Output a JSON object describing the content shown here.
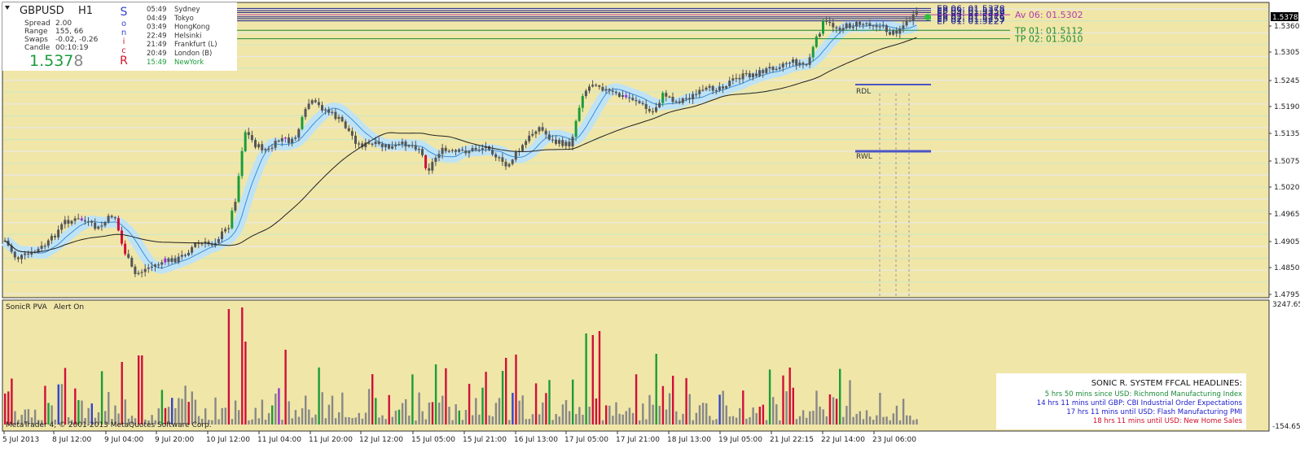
{
  "symbol_panel": {
    "symbol": "GBPUSD",
    "timeframe": "H1",
    "spread_label": "Spread",
    "spread_value": "2.00",
    "range_label": "Range",
    "range_value": "155, 66",
    "swaps_label": "Swaps",
    "swaps_value": "-0.02, -0.26",
    "candle_label": "Candle",
    "candle_value": "00:10:19",
    "bid_main": "1.537",
    "bid_last": "8",
    "logo_letters": [
      "S",
      "o",
      "n",
      "i",
      "c",
      "R"
    ]
  },
  "sessions": [
    {
      "time": "05:49",
      "name": "Sydney"
    },
    {
      "time": "04:49",
      "name": "Tokyo"
    },
    {
      "time": "03:49",
      "name": "HongKong"
    },
    {
      "time": "22:49",
      "name": "Helsinki"
    },
    {
      "time": "21:49",
      "name": "Frankfurt  (L)"
    },
    {
      "time": "20:49",
      "name": "London  (B)"
    },
    {
      "time": "15:49",
      "name": "NewYork"
    }
  ],
  "price_scale": [
    "1.5360",
    "1.5305",
    "1.5245",
    "1.5190",
    "1.5135",
    "1.5075",
    "1.5020",
    "1.4965",
    "1.4905",
    "1.4850",
    "1.4795"
  ],
  "current_price_tag": "1.5378",
  "levels": [
    {
      "label": "EP 06:",
      "value": "01.5378",
      "color": "#1a1a8c"
    },
    {
      "label": "EP 05:",
      "value": "01.5352",
      "color": "#1a1a8c"
    },
    {
      "label": "EP 04:",
      "value": "01.5329",
      "color": "#1a1a8c"
    },
    {
      "label": "Av 06:",
      "value": "01.5302",
      "color": "#b03cb0"
    },
    {
      "label": "EP 03:",
      "value": "01.5276",
      "color": "#1a1a8c"
    },
    {
      "label": "EP 02:",
      "value": "01.5253",
      "color": "#1a1a8c"
    },
    {
      "label": "EP 01:",
      "value": "01.5227",
      "color": "#1a1a8c"
    },
    {
      "label": "TP 01:",
      "value": "01.5112",
      "color": "#1b8c3a"
    },
    {
      "label": "TP 02:",
      "value": "01.5010",
      "color": "#1b8c3a"
    }
  ],
  "rdl_label": "RDL",
  "rwl_label": "RWL",
  "indicator": {
    "name": "SonicR PVA",
    "alert": "Alert On",
    "scale_top": "3247.65",
    "scale_bottom": "-154.65"
  },
  "time_axis": [
    "5 Jul 2013",
    "8 Jul 12:00",
    "9 Jul 04:00",
    "9 Jul 20:00",
    "10 Jul 12:00",
    "11 Jul 04:00",
    "11 Jul 20:00",
    "12 Jul 12:00",
    "15 Jul 05:00",
    "15 Jul 21:00",
    "16 Jul 13:00",
    "17 Jul 05:00",
    "17 Jul 21:00",
    "18 Jul 13:00",
    "19 Jul 05:00",
    "21 Jul 22:15",
    "22 Jul 14:00",
    "23 Jul 06:00"
  ],
  "copyright": "MetaTrader 4, © 2001-2013 MetaQuotes Software Corp.",
  "headlines": {
    "title": "SONIC R. SYSTEM  FFCAL HEADLINES:",
    "items": [
      {
        "text": "5 hrs 50 mins since USD: Richmond Manufacturing Index",
        "color": "#1b8c3a"
      },
      {
        "text": "14 hrs 11 mins until GBP: CBI Industrial Order Expectations",
        "color": "#1a1acc"
      },
      {
        "text": "17 hrs 11 mins until USD: Flash Manufacturing PMI",
        "color": "#1a1acc"
      },
      {
        "text": "18 hrs 11 mins until USD: New Home Sales",
        "color": "#d0102a"
      }
    ]
  },
  "colors": {
    "chart_bg": "#f0e6a8",
    "bull": "#1b9c3a",
    "bear": "#d0103a",
    "neutral": "#555555",
    "purple": "#9933cc",
    "band": "#bfe3f5"
  }
}
